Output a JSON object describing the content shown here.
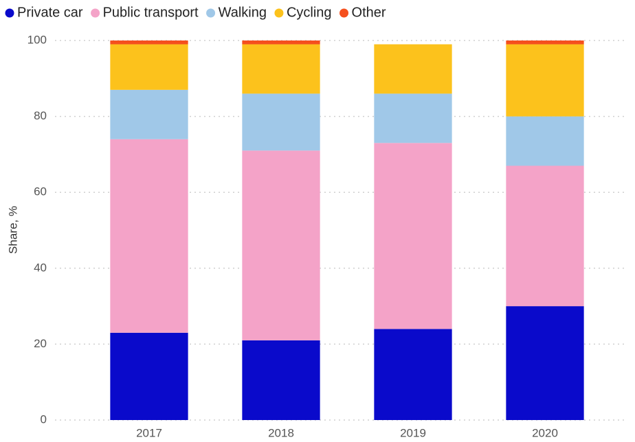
{
  "chart_data": {
    "type": "stacked_bar",
    "y_label": "Share, %",
    "categories": [
      "2017",
      "2018",
      "2019",
      "2020"
    ],
    "series": [
      {
        "name": "Private car",
        "color": "#0a0acb",
        "values": [
          23,
          21,
          24,
          30
        ]
      },
      {
        "name": "Public transport",
        "color": "#f4a3c8",
        "values": [
          51,
          50,
          49,
          37
        ]
      },
      {
        "name": "Walking",
        "color": "#a0c8e8",
        "values": [
          13,
          15,
          13,
          13
        ]
      },
      {
        "name": "Cycling",
        "color": "#fcc21c",
        "values": [
          12,
          13,
          13,
          19
        ]
      },
      {
        "name": "Other",
        "color": "#f5501e",
        "values": [
          1,
          1,
          0,
          1
        ]
      }
    ],
    "ylim": [
      0,
      100
    ],
    "yticks": [
      0,
      20,
      40,
      60,
      80,
      100
    ],
    "grid": true,
    "legend": "top-left"
  }
}
